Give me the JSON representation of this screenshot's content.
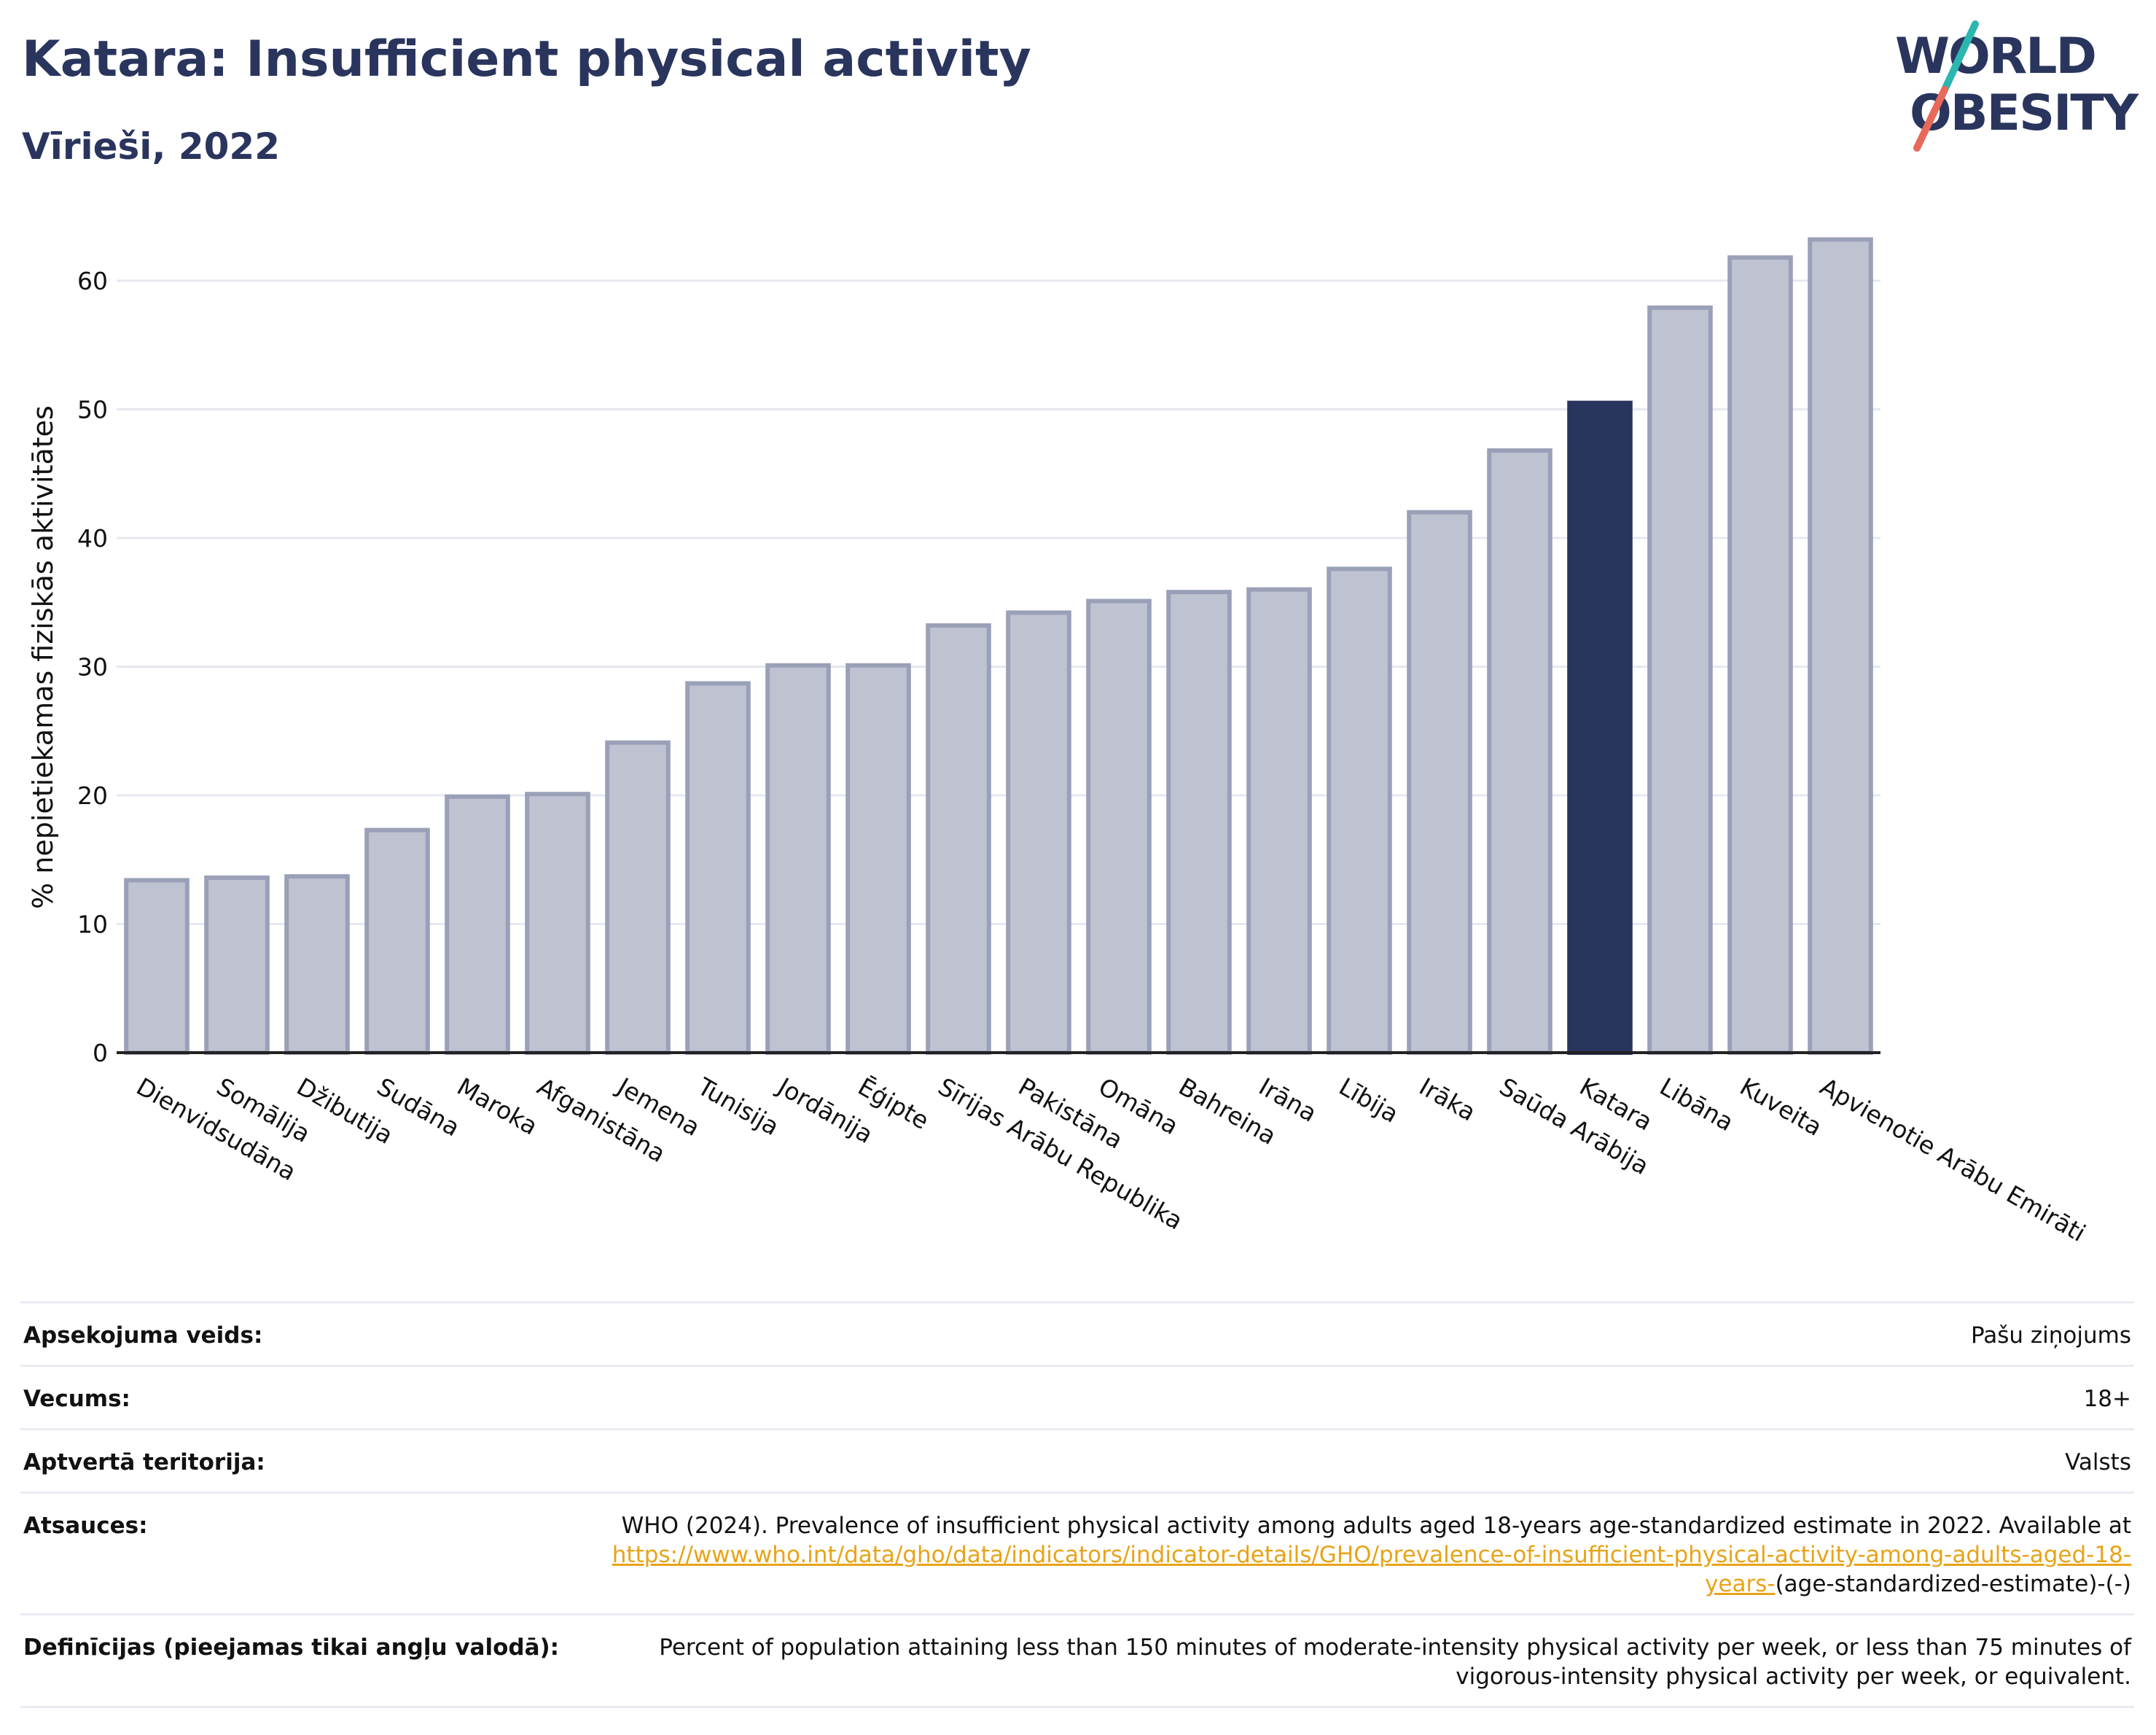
{
  "header": {
    "title": "Katara: Insufficient physical activity",
    "subtitle": "Vīrieši, 2022"
  },
  "logo": {
    "line1": "WORLD",
    "line2": "OBESITY"
  },
  "chart_data": {
    "type": "bar",
    "categories": [
      "Dienvidsudāna",
      "Somālija",
      "Džibutija",
      "Sudāna",
      "Maroka",
      "Afganistāna",
      "Jemena",
      "Tunisija",
      "Jordānija",
      "Ēģipte",
      "Sīrijas Arābu Republika",
      "Pakistāna",
      "Omāna",
      "Bahreina",
      "Irāna",
      "Lībija",
      "Irāka",
      "Saūda Arābija",
      "Katara",
      "Libāna",
      "Kuveita",
      "Apvienotie Arābu Emirāti"
    ],
    "values": [
      13.4,
      13.6,
      13.7,
      17.3,
      19.9,
      20.1,
      24.1,
      28.7,
      30.1,
      30.1,
      33.2,
      34.2,
      35.1,
      35.8,
      36.0,
      37.6,
      42.0,
      46.8,
      50.5,
      57.9,
      61.8,
      63.2
    ],
    "highlight": "Katara",
    "ylabel": "% nepietiekamas fiziskās aktivitātes",
    "xlabel": "",
    "ylim": [
      0,
      66
    ],
    "yticks": [
      0,
      10,
      20,
      30,
      40,
      50,
      60
    ],
    "grid": true,
    "colors": {
      "bar": "#bfc3d1",
      "bar_edge": "#9aa0b7",
      "highlight": "#2a355e",
      "grid": "#e6e8ef",
      "axis": "#222222"
    }
  },
  "info": {
    "rows": [
      {
        "label": "Apsekojuma veids:",
        "value": "Pašu ziņojums"
      },
      {
        "label": "Vecums:",
        "value": "18+"
      },
      {
        "label": "Aptvertā teritorija:",
        "value": "Valsts"
      }
    ],
    "source": {
      "label": "Atsauces:",
      "text": "WHO (2024). Prevalence of insufficient physical activity among adults aged 18-years age-standardized estimate in 2022. Available at",
      "link": "https://www.who.int/data/gho/data/indicators/indicator-details/GHO/prevalence-of-insufficient-physical-activity-among-adults-aged-18-years-",
      "suffix": "(age-standardized-estimate)-(-)"
    },
    "definition": {
      "label": "Definīcijas (pieejamas tikai angļu valodā):",
      "value": "Percent of population attaining less than 150 minutes of moderate-intensity physical activity per week, or less than 75 minutes of vigorous-intensity physical activity per week, or equivalent."
    }
  }
}
